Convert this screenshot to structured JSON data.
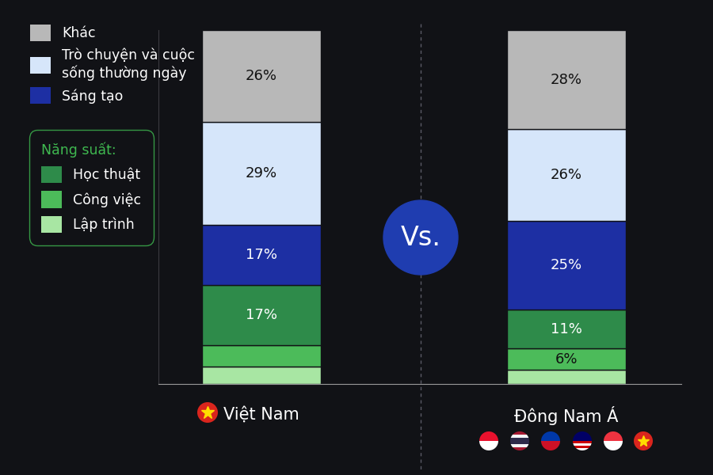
{
  "chart_data": {
    "type": "bar",
    "stacked": true,
    "categories": [
      "Việt Nam",
      "Đông Nam Á"
    ],
    "series": [
      {
        "name": "Lập trình",
        "color": "#a8e6a3",
        "values": [
          5,
          4
        ],
        "value_labels": [
          null,
          null
        ]
      },
      {
        "name": "Công việc",
        "color": "#4cbb5a",
        "values": [
          6,
          6
        ],
        "value_labels": [
          null,
          "6%"
        ]
      },
      {
        "name": "Học thuật",
        "color": "#2e8b4a",
        "values": [
          17,
          11
        ],
        "value_labels": [
          "17%",
          "11%"
        ]
      },
      {
        "name": "Sáng tạo",
        "color": "#1d2fa3",
        "values": [
          17,
          25
        ],
        "value_labels": [
          "17%",
          "25%"
        ]
      },
      {
        "name": "Trò chuyện và cuộc\nsống thường ngày",
        "color": "#d6e6fa",
        "values": [
          29,
          26
        ],
        "value_labels": [
          "29%",
          "26%"
        ]
      },
      {
        "name": "Khác",
        "color": "#b8b8b8",
        "values": [
          26,
          28
        ],
        "value_labels": [
          "26%",
          "28%"
        ]
      }
    ],
    "legend_group": {
      "title": "Năng suất:",
      "series": [
        "Học thuật",
        "Công việc",
        "Lập trình"
      ]
    },
    "annotations": [
      "Vs."
    ],
    "ylim": [
      0,
      100
    ],
    "data_labels": true,
    "tick_labels": "x",
    "legend": "upper left"
  }
}
